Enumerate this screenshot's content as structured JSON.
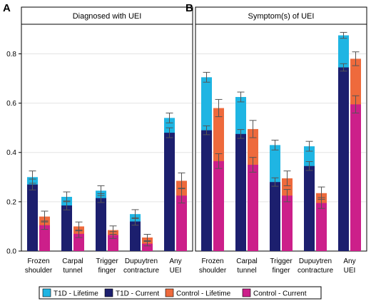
{
  "chart_data": [
    {
      "panel": "A",
      "title": "Diagnosed with UEI",
      "type": "bar",
      "categories": [
        [
          "Frozen",
          "shoulder"
        ],
        [
          "Carpal",
          "tunnel"
        ],
        [
          "Trigger",
          "finger"
        ],
        [
          "Dupuytren",
          "contracture"
        ],
        [
          "Any",
          "UEI"
        ]
      ],
      "y_ticks": [
        0.0,
        0.2,
        0.4,
        0.6,
        0.8
      ],
      "ylim": [
        0,
        0.92
      ],
      "groups": {
        "T1D": {
          "lifetime": [
            0.3,
            0.22,
            0.245,
            0.15,
            0.54
          ],
          "current": [
            0.27,
            0.185,
            0.215,
            0.12,
            0.48
          ],
          "lifetime_err": [
            0.025,
            0.02,
            0.02,
            0.018,
            0.02
          ],
          "current_err": [
            0.022,
            0.018,
            0.018,
            0.015,
            0.02
          ]
        },
        "Control": {
          "lifetime": [
            0.14,
            0.1,
            0.085,
            0.055,
            0.285
          ],
          "current": [
            0.105,
            0.07,
            0.065,
            0.03,
            0.225
          ],
          "lifetime_err": [
            0.022,
            0.018,
            0.017,
            0.013,
            0.032
          ],
          "current_err": [
            0.017,
            0.015,
            0.014,
            0.009,
            0.03
          ]
        }
      }
    },
    {
      "panel": "B",
      "title": "Symptom(s) of UEI",
      "type": "bar",
      "categories": [
        [
          "Frozen",
          "shoulder"
        ],
        [
          "Carpal",
          "tunnel"
        ],
        [
          "Trigger",
          "finger"
        ],
        [
          "Dupuytren",
          "contracture"
        ],
        [
          "Any",
          "UEI"
        ]
      ],
      "y_ticks": [
        0.0,
        0.2,
        0.4,
        0.6,
        0.8
      ],
      "ylim": [
        0,
        0.92
      ],
      "groups": {
        "T1D": {
          "lifetime": [
            0.705,
            0.625,
            0.43,
            0.425,
            0.875
          ],
          "current": [
            0.49,
            0.475,
            0.28,
            0.345,
            0.745
          ],
          "lifetime_err": [
            0.02,
            0.02,
            0.02,
            0.02,
            0.012
          ],
          "current_err": [
            0.018,
            0.018,
            0.017,
            0.018,
            0.015
          ]
        },
        "Control": {
          "lifetime": [
            0.58,
            0.495,
            0.295,
            0.235,
            0.78
          ],
          "current": [
            0.365,
            0.35,
            0.225,
            0.195,
            0.595
          ],
          "lifetime_err": [
            0.035,
            0.035,
            0.03,
            0.025,
            0.028
          ],
          "current_err": [
            0.03,
            0.03,
            0.025,
            0.022,
            0.035
          ]
        }
      }
    }
  ],
  "legend": [
    {
      "label": "T1D - Lifetime",
      "color": "#1fb5e3"
    },
    {
      "label": "T1D - Current",
      "color": "#1c1f6e"
    },
    {
      "label": "Control - Lifetime",
      "color": "#ee6a3c"
    },
    {
      "label": "Control - Current",
      "color": "#cc1f8a"
    }
  ]
}
